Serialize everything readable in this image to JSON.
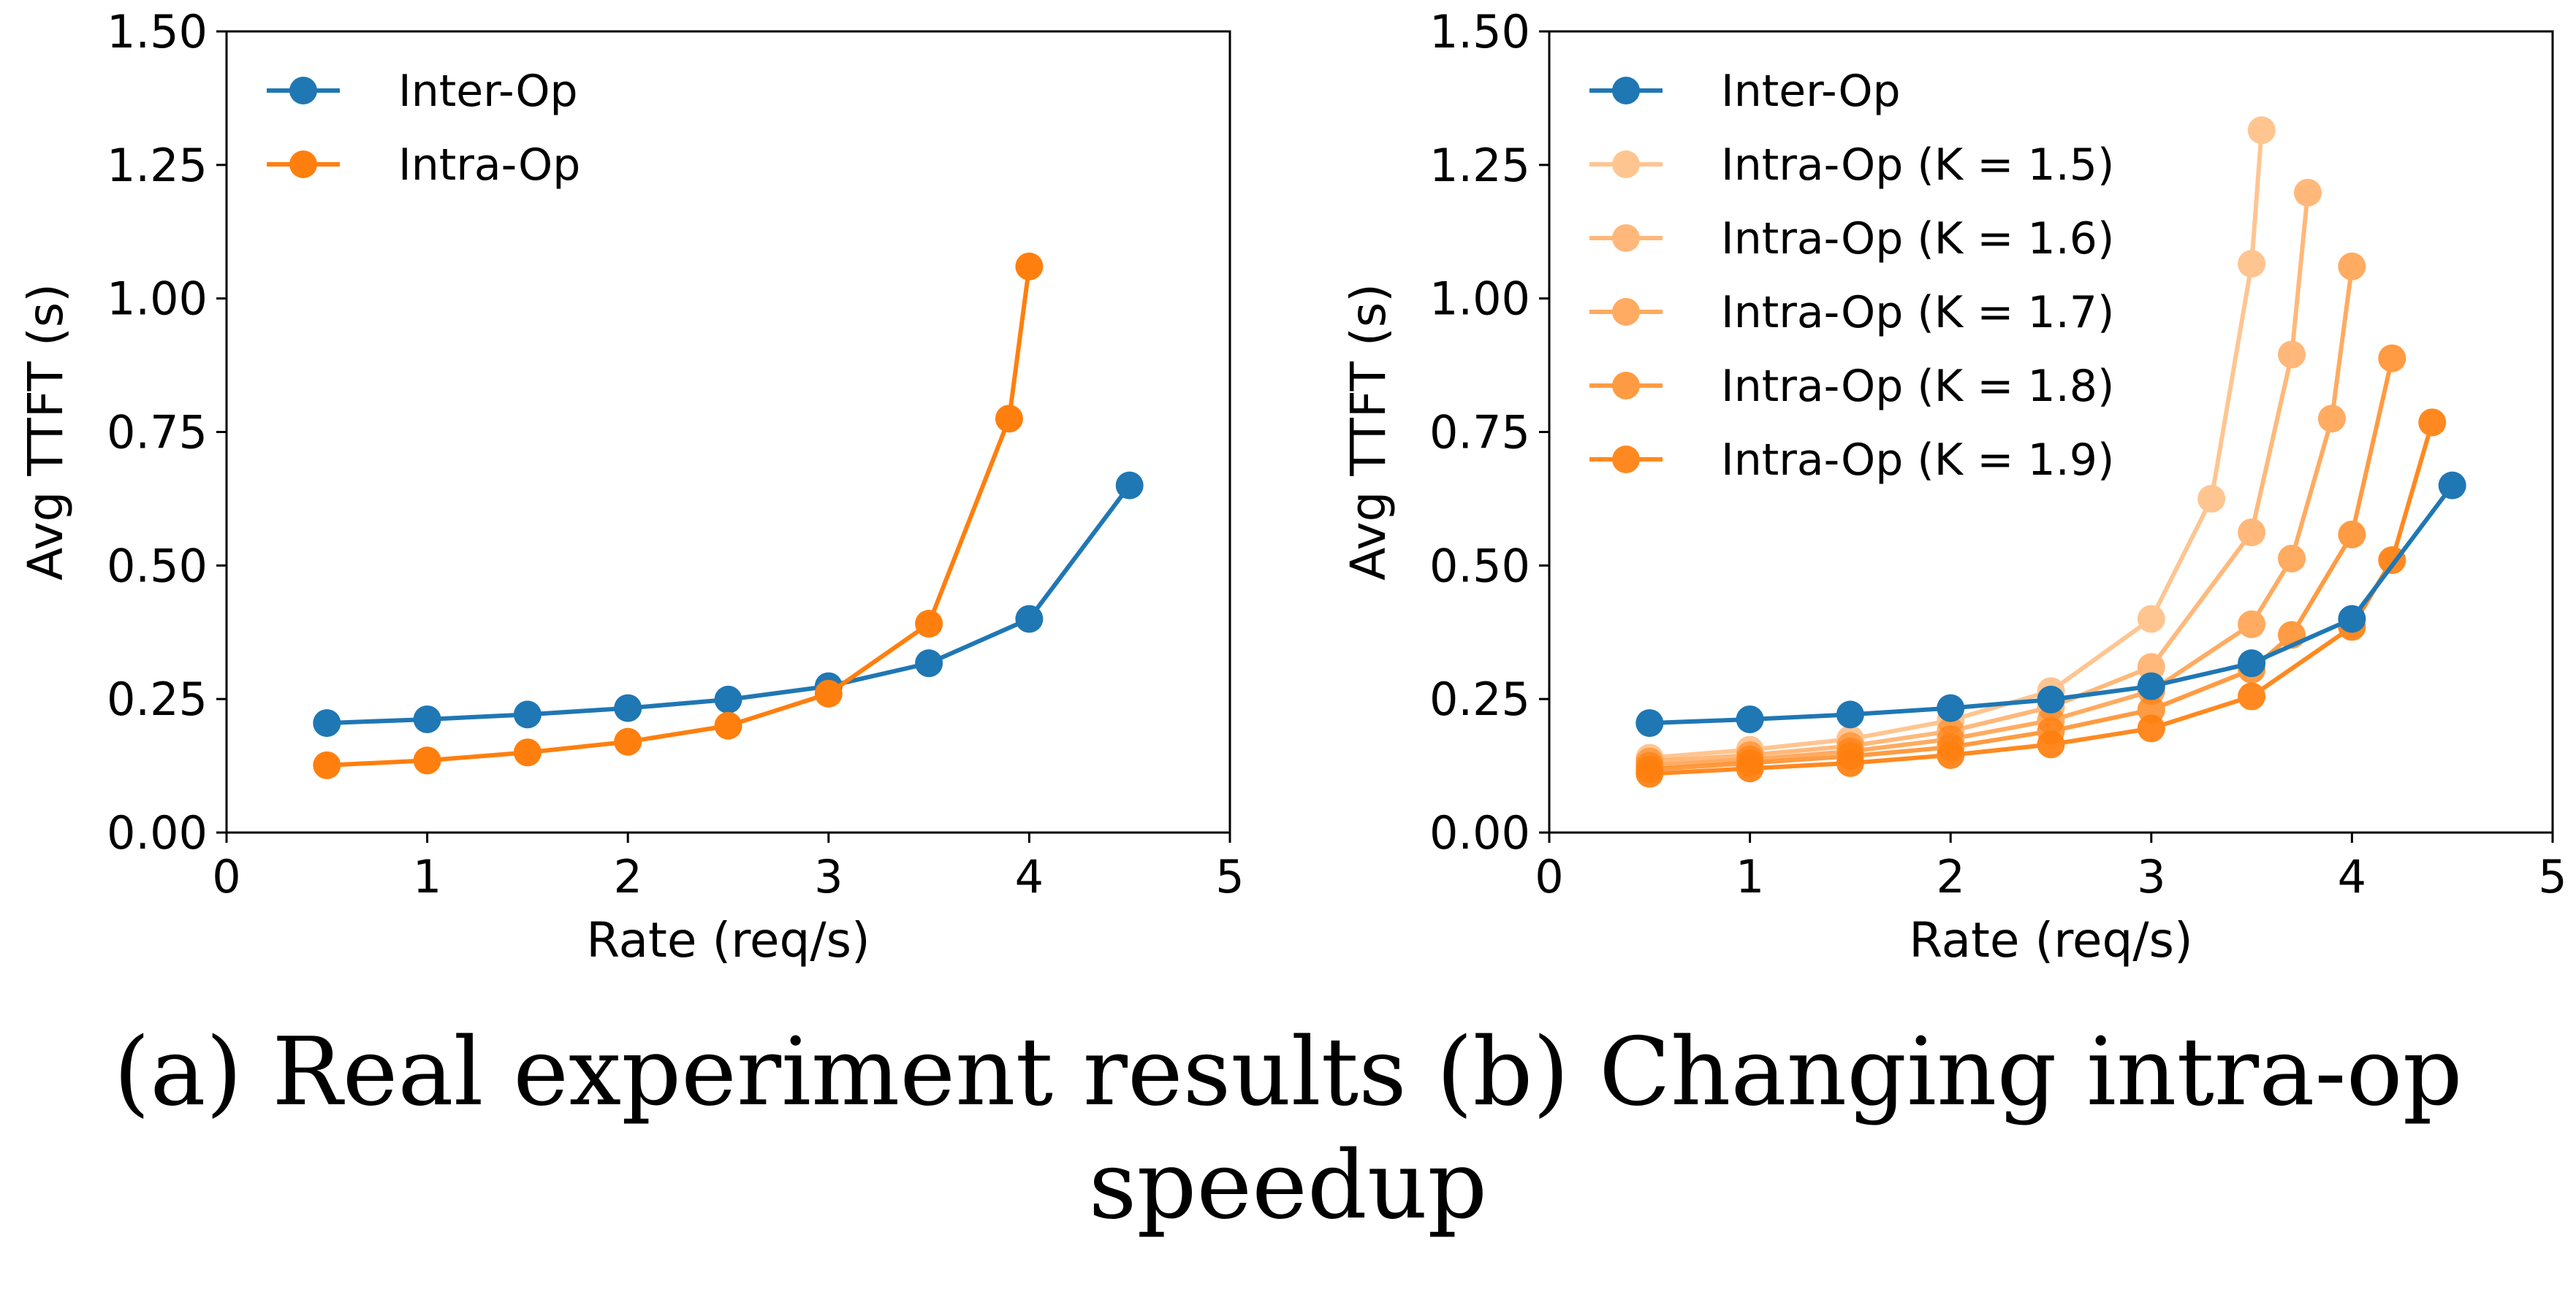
{
  "chart_data": [
    {
      "type": "line",
      "xlabel": "Rate (req/s)",
      "ylabel": "Avg TTFT (s)",
      "xlim": [
        0,
        5
      ],
      "ylim": [
        0,
        1.5
      ],
      "xticks": [
        "0",
        "1",
        "2",
        "3",
        "4",
        "5"
      ],
      "yticks": [
        "0.00",
        "0.25",
        "0.50",
        "0.75",
        "1.00",
        "1.25",
        "1.50"
      ],
      "grid": false,
      "legend_position": "top-left",
      "series": [
        {
          "name": "Inter-Op",
          "color": "#1f77b4",
          "opacity": 1,
          "x": [
            0.5,
            1.0,
            1.5,
            2.0,
            2.5,
            3.0,
            3.5,
            4.0,
            4.5
          ],
          "y": [
            0.205,
            0.212,
            0.221,
            0.233,
            0.249,
            0.274,
            0.317,
            0.4,
            0.65
          ]
        },
        {
          "name": "Intra-Op",
          "color": "#ff7f0e",
          "opacity": 1,
          "x": [
            0.5,
            1.0,
            1.5,
            2.0,
            2.5,
            3.0,
            3.5,
            3.9,
            4.0
          ],
          "y": [
            0.126,
            0.135,
            0.15,
            0.17,
            0.2,
            0.26,
            0.391,
            0.775,
            1.06
          ]
        }
      ]
    },
    {
      "type": "line",
      "xlabel": "Rate (req/s)",
      "ylabel": "Avg TTFT (s)",
      "xlim": [
        0,
        5
      ],
      "ylim": [
        0,
        1.5
      ],
      "xticks": [
        "0",
        "1",
        "2",
        "3",
        "4",
        "5"
      ],
      "yticks": [
        "0.00",
        "0.25",
        "0.50",
        "0.75",
        "1.00",
        "1.25",
        "1.50"
      ],
      "grid": false,
      "legend_position": "top-left",
      "series": [
        {
          "name": "Inter-Op",
          "color": "#1f77b4",
          "opacity": 1,
          "x": [
            0.5,
            1.0,
            1.5,
            2.0,
            2.5,
            3.0,
            3.5,
            4.0,
            4.5
          ],
          "y": [
            0.205,
            0.212,
            0.221,
            0.233,
            0.249,
            0.274,
            0.317,
            0.4,
            0.65
          ]
        },
        {
          "name": "Intra-Op (K = 1.5)",
          "color": "#ff7f0e",
          "opacity": 0.45,
          "x": [
            0.5,
            1.0,
            1.5,
            2.0,
            2.5,
            3.0,
            3.3,
            3.5,
            3.55
          ],
          "y": [
            0.14,
            0.155,
            0.175,
            0.21,
            0.265,
            0.4,
            0.625,
            1.065,
            1.315
          ]
        },
        {
          "name": "Intra-Op (K = 1.6)",
          "color": "#ff7f0e",
          "opacity": 0.55,
          "x": [
            0.5,
            1.0,
            1.5,
            2.0,
            2.5,
            3.0,
            3.5,
            3.7,
            3.78
          ],
          "y": [
            0.133,
            0.145,
            0.162,
            0.19,
            0.235,
            0.31,
            0.562,
            0.895,
            1.198
          ]
        },
        {
          "name": "Intra-Op (K = 1.7)",
          "color": "#ff7f0e",
          "opacity": 0.65,
          "x": [
            0.5,
            1.0,
            1.5,
            2.0,
            2.5,
            3.0,
            3.5,
            3.7,
            3.9,
            4.0
          ],
          "y": [
            0.125,
            0.137,
            0.152,
            0.175,
            0.21,
            0.265,
            0.39,
            0.513,
            0.775,
            1.06
          ]
        },
        {
          "name": "Intra-Op (K = 1.8)",
          "color": "#ff7f0e",
          "opacity": 0.78,
          "x": [
            0.5,
            1.0,
            1.5,
            2.0,
            2.5,
            3.0,
            3.5,
            3.7,
            4.0,
            4.2
          ],
          "y": [
            0.118,
            0.13,
            0.143,
            0.16,
            0.19,
            0.23,
            0.305,
            0.37,
            0.558,
            0.888
          ]
        },
        {
          "name": "Intra-Op (K = 1.9)",
          "color": "#ff7f0e",
          "opacity": 0.92,
          "x": [
            0.5,
            1.0,
            1.5,
            2.0,
            2.5,
            3.0,
            3.5,
            4.0,
            4.2,
            4.4
          ],
          "y": [
            0.11,
            0.12,
            0.13,
            0.145,
            0.165,
            0.195,
            0.255,
            0.385,
            0.51,
            0.768
          ]
        }
      ]
    }
  ],
  "captions": {
    "line1": "(a) Real experiment results (b) Changing intra-op",
    "line2": "speedup"
  }
}
